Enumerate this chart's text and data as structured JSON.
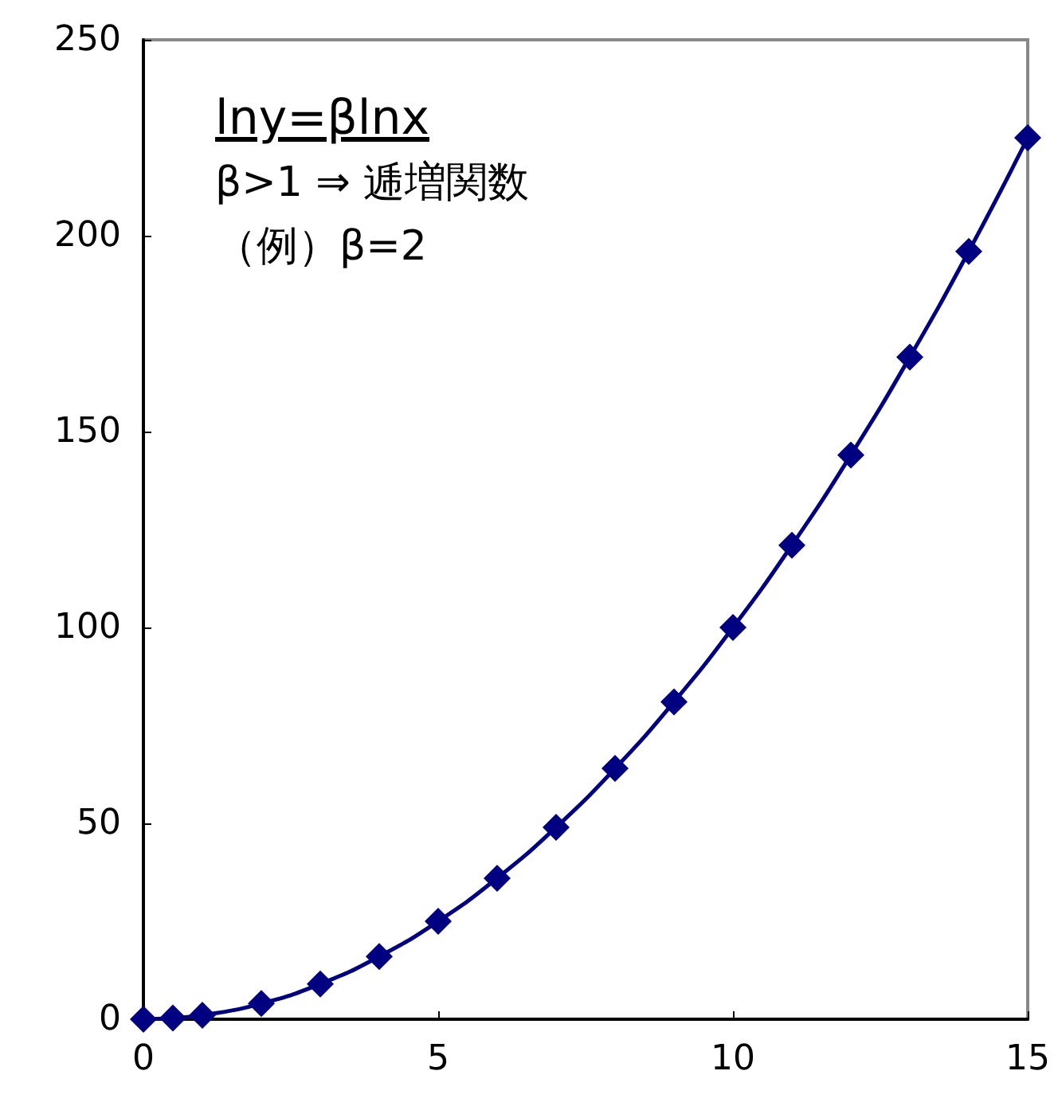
{
  "chart_data": {
    "type": "line",
    "annotations": [
      "lny=βlnx",
      "β>1 ⇒ 逓増関数",
      "（例）β=2"
    ],
    "x": [
      0,
      0.5,
      1,
      2,
      3,
      4,
      5,
      6,
      7,
      8,
      9,
      10,
      11,
      12,
      13,
      14,
      15
    ],
    "series": [
      {
        "color": "#000080",
        "values": [
          0,
          0.3,
          1,
          4,
          9,
          16,
          25,
          36,
          49,
          64,
          81,
          100,
          121,
          144,
          169,
          196,
          225
        ]
      }
    ],
    "xlim": [
      0,
      15
    ],
    "xticks": [
      0,
      5,
      10,
      15
    ],
    "ylim": [
      0,
      250
    ],
    "yticks": [
      0,
      50,
      100,
      150,
      200,
      250
    ],
    "grid": false,
    "marker": "diamond",
    "line_style": "solid"
  }
}
